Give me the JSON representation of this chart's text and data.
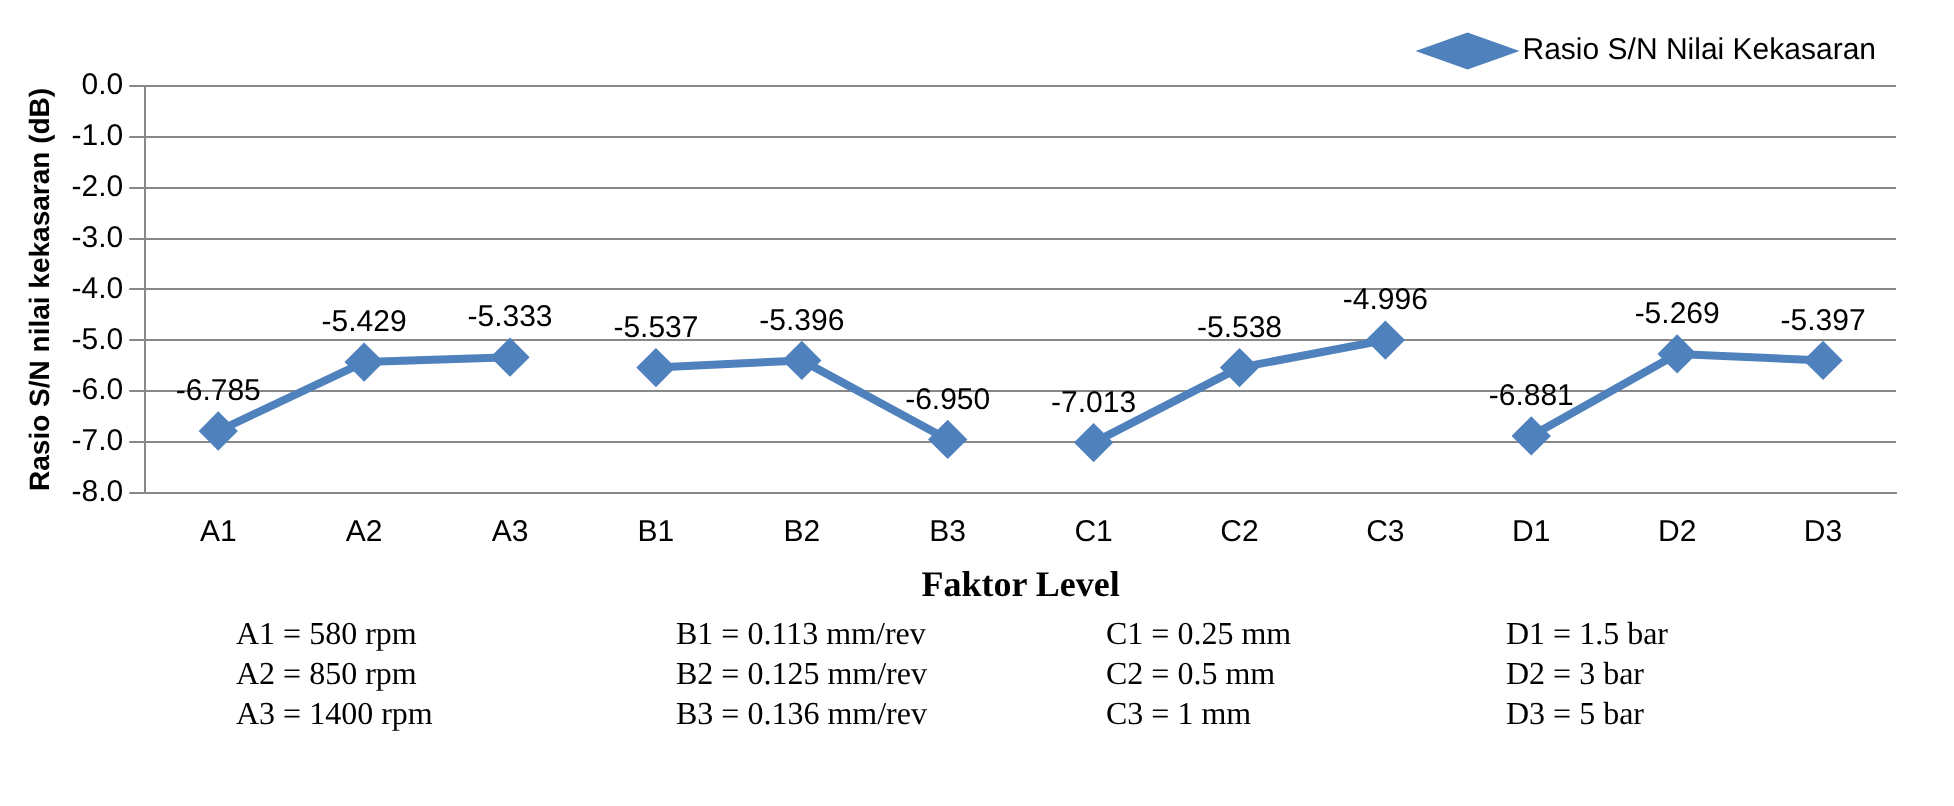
{
  "chart_data": {
    "type": "line",
    "xlabel": "Faktor Level",
    "ylabel": "Rasio S/N nilai kekasaran (dB)",
    "categories": [
      "A1",
      "A2",
      "A3",
      "B1",
      "B2",
      "B3",
      "C1",
      "C2",
      "C3",
      "D1",
      "D2",
      "D3"
    ],
    "series": [
      {
        "name": "Rasio S/N Nilai Kekasaran",
        "color": "#4f81bd",
        "values": [
          -6.785,
          -5.429,
          -5.333,
          null,
          null,
          null,
          null,
          null,
          null,
          null,
          null,
          null
        ],
        "value_labels": [
          "-6.785",
          "-5.429",
          "-5.333",
          null,
          null,
          null,
          null,
          null,
          null,
          null,
          null,
          null
        ]
      },
      {
        "color": "#4f81bd",
        "values": [
          null,
          null,
          null,
          -5.537,
          -5.396,
          -6.95,
          null,
          null,
          null,
          null,
          null,
          null
        ],
        "value_labels": [
          null,
          null,
          null,
          "-5.537",
          "-5.396",
          "-6.950",
          null,
          null,
          null,
          null,
          null,
          null
        ]
      },
      {
        "color": "#4f81bd",
        "values": [
          null,
          null,
          null,
          null,
          null,
          null,
          -7.013,
          -5.538,
          -4.996,
          null,
          null,
          null
        ],
        "value_labels": [
          null,
          null,
          null,
          null,
          null,
          null,
          "-7.013",
          "-5.538",
          "-4.996",
          null,
          null,
          null
        ]
      },
      {
        "color": "#4f81bd",
        "values": [
          null,
          null,
          null,
          null,
          null,
          null,
          null,
          null,
          null,
          -6.881,
          -5.269,
          -5.397
        ],
        "value_labels": [
          null,
          null,
          null,
          null,
          null,
          null,
          null,
          null,
          null,
          "-6.881",
          "-5.269",
          "-5.397"
        ]
      }
    ],
    "ylim": [
      -8,
      0
    ],
    "yticks": [
      {
        "value": 0,
        "label": "0.0"
      },
      {
        "value": -1,
        "label": "-1.0"
      },
      {
        "value": -2,
        "label": "-2.0"
      },
      {
        "value": -3,
        "label": "-3.0"
      },
      {
        "value": -4,
        "label": "-4.0"
      },
      {
        "value": -5,
        "label": "-5.0"
      },
      {
        "value": -6,
        "label": "-6.0"
      },
      {
        "value": -7,
        "label": "-7.0"
      },
      {
        "value": -8,
        "label": "-8.0"
      }
    ],
    "grid": "y",
    "legend": "top right",
    "marker": "diamond",
    "line_style": "solid",
    "annotations": [
      "A1 = 580 rpm",
      "B1 = 0.113 mm/rev",
      "C1 = 0.25 mm",
      "D1 = 1.5 bar",
      "A2 = 850 rpm",
      "B2 = 0.125 mm/rev",
      "C2 = 0.5 mm",
      "D2 = 3 bar",
      "A3 = 1400 rpm",
      "B3 = 0.136 mm/rev",
      "C3 = 1 mm",
      "D3 = 5 bar"
    ]
  }
}
